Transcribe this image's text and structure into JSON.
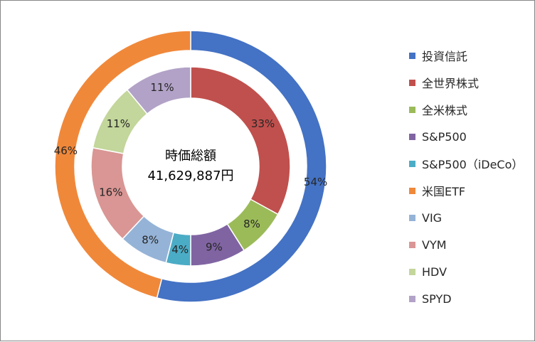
{
  "chart_data": {
    "type": "pie",
    "center_label": [
      "時価総額",
      "41,629,887円"
    ],
    "rings": [
      {
        "ring": "outer",
        "categories": [
          "投資信託",
          "米国ETF"
        ],
        "values": [
          54,
          46
        ],
        "labels": [
          "54%",
          "46%"
        ],
        "colors": [
          "#4472c4",
          "#f0883a"
        ]
      },
      {
        "ring": "inner",
        "categories": [
          "全世界株式",
          "全米株式",
          "S&P500",
          "S&P500（iDeCo）",
          "VIG",
          "VYM",
          "HDV",
          "SPYD"
        ],
        "values": [
          33,
          8,
          9,
          4,
          8,
          16,
          11,
          11
        ],
        "labels": [
          "33%",
          "8%",
          "9%",
          "4%",
          "8%",
          "16%",
          "11%",
          "11%"
        ],
        "colors": [
          "#c0504d",
          "#9bbb59",
          "#8064a2",
          "#4bacc6",
          "#95b3d7",
          "#d99694",
          "#c3d69b",
          "#b2a2c7"
        ]
      }
    ],
    "legend": {
      "position": "right",
      "items": [
        {
          "label": "投資信託",
          "color": "#4472c4"
        },
        {
          "label": "全世界株式",
          "color": "#c0504d"
        },
        {
          "label": "全米株式",
          "color": "#9bbb59"
        },
        {
          "label": "S&P500",
          "color": "#8064a2"
        },
        {
          "label": "S&P500（iDeCo）",
          "color": "#4bacc6"
        },
        {
          "label": "米国ETF",
          "color": "#f0883a"
        },
        {
          "label": "VIG",
          "color": "#95b3d7"
        },
        {
          "label": "VYM",
          "color": "#d99694"
        },
        {
          "label": "HDV",
          "color": "#c3d69b"
        },
        {
          "label": "SPYD",
          "color": "#b2a2c7"
        }
      ]
    }
  }
}
